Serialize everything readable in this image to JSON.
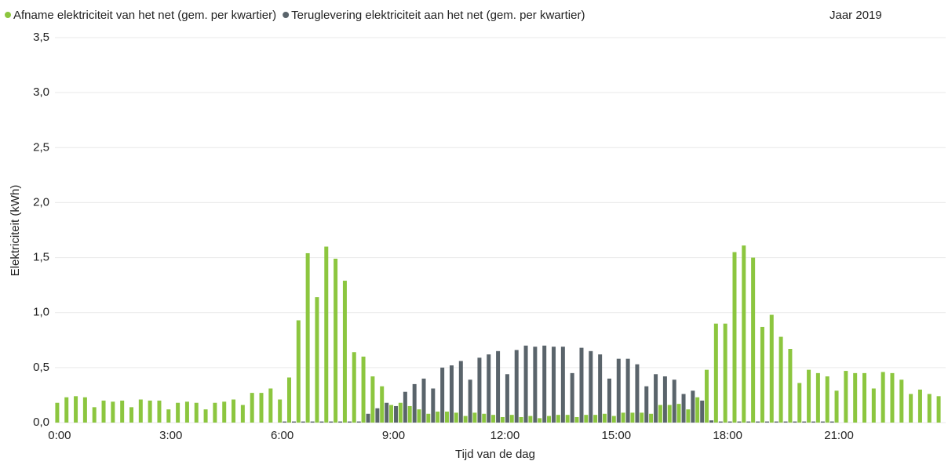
{
  "chart_data": {
    "type": "bar",
    "subtitle": "Jaar 2019",
    "x_label": "Tijd van de dag",
    "y_label": "Elektriciteit (kWh)",
    "categories": [
      "0:00",
      null,
      null,
      null,
      null,
      null,
      null,
      null,
      null,
      null,
      null,
      null,
      "3:00",
      null,
      null,
      null,
      null,
      null,
      null,
      null,
      null,
      null,
      null,
      null,
      "6:00",
      null,
      null,
      null,
      null,
      null,
      null,
      null,
      null,
      null,
      null,
      null,
      "9:00",
      null,
      null,
      null,
      null,
      null,
      null,
      null,
      null,
      null,
      null,
      null,
      "12:00",
      null,
      null,
      null,
      null,
      null,
      null,
      null,
      null,
      null,
      null,
      null,
      "15:00",
      null,
      null,
      null,
      null,
      null,
      null,
      null,
      null,
      null,
      null,
      null,
      "18:00",
      null,
      null,
      null,
      null,
      null,
      null,
      null,
      null,
      null,
      null,
      null,
      "21:00",
      null,
      null,
      null,
      null,
      null,
      null,
      null,
      null,
      null,
      null,
      null
    ],
    "series": [
      {
        "name": "Afname elektriciteit van het net (gem. per kwartier)",
        "color": "#8cc63f",
        "values": [
          0.18,
          0.23,
          0.24,
          0.23,
          0.14,
          0.2,
          0.19,
          0.2,
          0.14,
          0.21,
          0.2,
          0.2,
          0.12,
          0.18,
          0.19,
          0.18,
          0.12,
          0.18,
          0.19,
          0.21,
          0.16,
          0.27,
          0.27,
          0.31,
          0.21,
          0.41,
          0.93,
          1.54,
          1.14,
          1.6,
          1.49,
          1.29,
          0.64,
          0.6,
          0.42,
          0.33,
          0.16,
          0.18,
          0.15,
          0.12,
          0.08,
          0.1,
          0.1,
          0.09,
          0.06,
          0.09,
          0.08,
          0.07,
          0.05,
          0.07,
          0.05,
          0.06,
          0.04,
          0.06,
          0.07,
          0.07,
          0.05,
          0.07,
          0.07,
          0.08,
          0.06,
          0.09,
          0.09,
          0.09,
          0.08,
          0.16,
          0.16,
          0.17,
          0.12,
          0.23,
          0.48,
          0.9,
          0.9,
          1.55,
          1.61,
          1.5,
          0.87,
          0.98,
          0.78,
          0.67,
          0.36,
          0.48,
          0.45,
          0.42,
          0.29,
          0.47,
          0.45,
          0.45,
          0.31,
          0.46,
          0.45,
          0.39,
          0.26,
          0.3,
          0.26,
          0.24
        ]
      },
      {
        "name": "Teruglevering elektriciteit aan het net (gem. per kwartier)",
        "color": "#5a646b",
        "values": [
          0,
          0,
          0,
          0,
          0,
          0,
          0,
          0,
          0,
          0,
          0,
          0,
          0,
          0,
          0,
          0,
          0,
          0,
          0,
          0,
          0,
          0,
          0,
          0,
          0.01,
          0.01,
          0.01,
          0.01,
          0.01,
          0.01,
          0.01,
          0.01,
          0.01,
          0.08,
          0.13,
          0.18,
          0.15,
          0.28,
          0.35,
          0.4,
          0.31,
          0.5,
          0.52,
          0.56,
          0.39,
          0.59,
          0.62,
          0.65,
          0.44,
          0.66,
          0.7,
          0.69,
          0.7,
          0.69,
          0.69,
          0.45,
          0.68,
          0.65,
          0.62,
          0.4,
          0.58,
          0.58,
          0.53,
          0.33,
          0.44,
          0.42,
          0.39,
          0.26,
          0.29,
          0.2,
          0.02,
          0.01,
          0.01,
          0.01,
          0.01,
          0.01,
          0.01,
          0.01,
          0.01,
          0.01,
          0.01,
          0.01,
          0.01,
          0.01,
          0,
          0,
          0,
          0,
          0,
          0,
          0,
          0,
          0,
          0,
          0,
          0
        ]
      }
    ],
    "ylim": [
      0,
      3.5
    ],
    "yticks": [
      {
        "value": 0,
        "label": "0,0"
      },
      {
        "value": 0.5,
        "label": "0,5"
      },
      {
        "value": 1,
        "label": "1,0"
      },
      {
        "value": 1.5,
        "label": "1,5"
      },
      {
        "value": 2,
        "label": "2,0"
      },
      {
        "value": 2.5,
        "label": "2,5"
      },
      {
        "value": 3,
        "label": "3,0"
      },
      {
        "value": 3.5,
        "label": "3,5"
      }
    ],
    "grid": true
  }
}
